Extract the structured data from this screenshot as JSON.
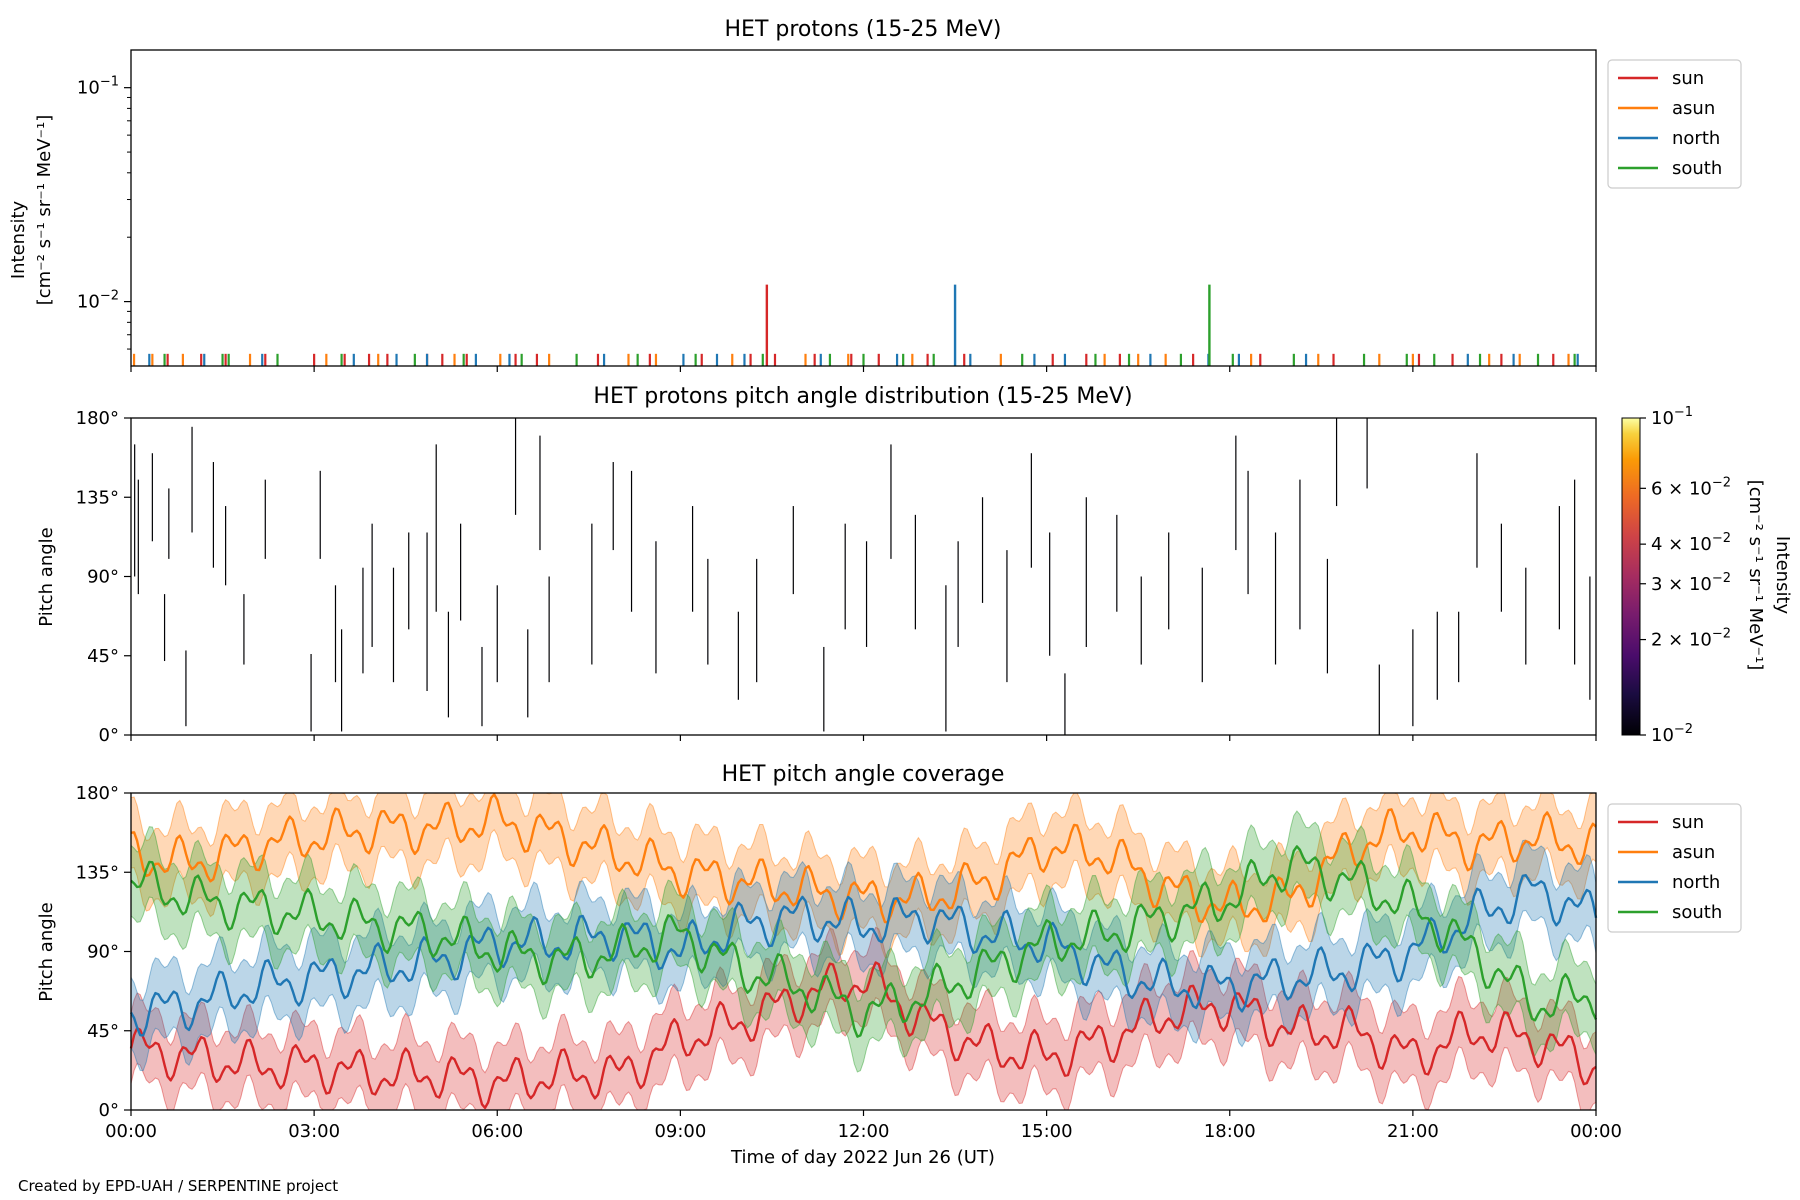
{
  "credit": "Created by EPD-UAH / SERPENTINE project",
  "colors": {
    "sun": "#d62728",
    "asun": "#ff7f0e",
    "north": "#1f77b4",
    "south": "#2ca02c"
  },
  "chart_data": [
    {
      "type": "line",
      "title": "HET protons (15-25 MeV)",
      "ylabel": "Intensity",
      "ylabel_unit": "[cm⁻² s⁻¹ sr⁻¹ MeV⁻¹]",
      "yscale": "log",
      "ylim": [
        0.005,
        0.15
      ],
      "y_ticks": [
        {
          "value": 0.01,
          "base": "10",
          "exp": "−2"
        },
        {
          "value": 0.1,
          "base": "10",
          "exp": "−1"
        }
      ],
      "x_range_hours": [
        0,
        24
      ],
      "legend": {
        "placement": "outside-right",
        "entries": [
          "sun",
          "asun",
          "north",
          "south"
        ]
      },
      "series": [
        {
          "name": "sun",
          "color": "#d62728",
          "note": "sparse spikes",
          "peaks": [
            {
              "time": "10:25",
              "value": 0.012
            }
          ],
          "baseline_spikes_hours": [
            0.6,
            1.15,
            1.55,
            2.2,
            3.0,
            3.5,
            3.9,
            4.2,
            4.85,
            5.1,
            5.5,
            6.3,
            6.65,
            7.65,
            8.5,
            9.35,
            10.15,
            10.55,
            11.2,
            11.8,
            12.25,
            13.05,
            13.65,
            15.1,
            15.65,
            16.2,
            17.4,
            18.5,
            19.7,
            21.1,
            21.65,
            22.45,
            23.3
          ]
        },
        {
          "name": "asun",
          "color": "#ff7f0e",
          "note": "sparse spikes",
          "peaks": [],
          "baseline_spikes_hours": [
            0.05,
            0.35,
            0.85,
            1.95,
            3.2,
            4.05,
            5.3,
            6.05,
            6.85,
            8.15,
            8.6,
            9.85,
            11.05,
            11.75,
            12.8,
            14.25,
            15.95,
            16.5,
            16.95,
            18.35,
            19.45,
            20.45,
            21.0,
            22.25,
            22.75,
            23.55
          ]
        },
        {
          "name": "north",
          "color": "#1f77b4",
          "note": "sparse spikes",
          "peaks": [
            {
              "time": "13:30",
              "value": 0.012
            }
          ],
          "baseline_spikes_hours": [
            0.3,
            1.2,
            2.15,
            3.65,
            4.35,
            4.85,
            5.65,
            6.2,
            7.75,
            9.05,
            9.6,
            10.05,
            11.3,
            12.55,
            13.75,
            14.8,
            15.3,
            16.7,
            17.65,
            18.15,
            19.25,
            21.9,
            22.65,
            23.7
          ]
        },
        {
          "name": "south",
          "color": "#2ca02c",
          "note": "sparse spikes",
          "peaks": [
            {
              "time": "17:40",
              "value": 0.012
            }
          ],
          "baseline_spikes_hours": [
            0.55,
            1.5,
            1.6,
            2.4,
            3.45,
            4.65,
            5.45,
            6.4,
            7.3,
            8.3,
            9.25,
            10.35,
            11.45,
            12.0,
            12.65,
            13.15,
            14.6,
            15.8,
            16.35,
            17.2,
            18.05,
            19.05,
            20.2,
            20.9,
            21.35,
            22.1,
            23.05,
            23.65
          ]
        }
      ]
    },
    {
      "type": "heatmap",
      "title": "HET protons pitch angle distribution (15-25 MeV)",
      "ylabel": "Pitch angle",
      "ylim": [
        0,
        180
      ],
      "y_ticks": [
        "0°",
        "45°",
        "90°",
        "135°",
        "180°"
      ],
      "x_range_hours": [
        0,
        24
      ],
      "note": "sparse thin dark vertical strokes, values near colorbar minimum",
      "strokes": [
        {
          "h": 0.06,
          "from": 90,
          "to": 165
        },
        {
          "h": 0.12,
          "from": 80,
          "to": 145
        },
        {
          "h": 0.35,
          "from": 110,
          "to": 160
        },
        {
          "h": 0.55,
          "from": 42,
          "to": 80
        },
        {
          "h": 0.62,
          "from": 100,
          "to": 140
        },
        {
          "h": 0.9,
          "from": 5,
          "to": 48
        },
        {
          "h": 1.0,
          "from": 115,
          "to": 175
        },
        {
          "h": 1.35,
          "from": 95,
          "to": 155
        },
        {
          "h": 1.55,
          "from": 85,
          "to": 130
        },
        {
          "h": 1.85,
          "from": 40,
          "to": 80
        },
        {
          "h": 2.2,
          "from": 100,
          "to": 145
        },
        {
          "h": 2.95,
          "from": 2,
          "to": 46
        },
        {
          "h": 3.1,
          "from": 100,
          "to": 150
        },
        {
          "h": 3.35,
          "from": 30,
          "to": 85
        },
        {
          "h": 3.45,
          "from": 2,
          "to": 60
        },
        {
          "h": 3.8,
          "from": 35,
          "to": 95
        },
        {
          "h": 3.95,
          "from": 50,
          "to": 120
        },
        {
          "h": 4.3,
          "from": 30,
          "to": 95
        },
        {
          "h": 4.55,
          "from": 60,
          "to": 115
        },
        {
          "h": 4.85,
          "from": 25,
          "to": 115
        },
        {
          "h": 5.0,
          "from": 70,
          "to": 165
        },
        {
          "h": 5.2,
          "from": 10,
          "to": 70
        },
        {
          "h": 5.4,
          "from": 65,
          "to": 120
        },
        {
          "h": 5.75,
          "from": 5,
          "to": 50
        },
        {
          "h": 6.0,
          "from": 30,
          "to": 85
        },
        {
          "h": 6.3,
          "from": 125,
          "to": 180
        },
        {
          "h": 6.5,
          "from": 10,
          "to": 60
        },
        {
          "h": 6.7,
          "from": 105,
          "to": 170
        },
        {
          "h": 6.85,
          "from": 30,
          "to": 90
        },
        {
          "h": 7.55,
          "from": 40,
          "to": 120
        },
        {
          "h": 7.9,
          "from": 105,
          "to": 155
        },
        {
          "h": 8.2,
          "from": 70,
          "to": 150
        },
        {
          "h": 8.6,
          "from": 35,
          "to": 110
        },
        {
          "h": 9.2,
          "from": 70,
          "to": 130
        },
        {
          "h": 9.45,
          "from": 40,
          "to": 100
        },
        {
          "h": 9.95,
          "from": 20,
          "to": 70
        },
        {
          "h": 10.25,
          "from": 30,
          "to": 100
        },
        {
          "h": 10.85,
          "from": 80,
          "to": 130
        },
        {
          "h": 11.35,
          "from": 2,
          "to": 50
        },
        {
          "h": 11.7,
          "from": 60,
          "to": 120
        },
        {
          "h": 12.05,
          "from": 50,
          "to": 110
        },
        {
          "h": 12.45,
          "from": 100,
          "to": 165
        },
        {
          "h": 12.85,
          "from": 60,
          "to": 125
        },
        {
          "h": 13.35,
          "from": 2,
          "to": 85
        },
        {
          "h": 13.55,
          "from": 50,
          "to": 110
        },
        {
          "h": 13.95,
          "from": 75,
          "to": 135
        },
        {
          "h": 14.35,
          "from": 30,
          "to": 105
        },
        {
          "h": 14.75,
          "from": 95,
          "to": 160
        },
        {
          "h": 15.05,
          "from": 45,
          "to": 115
        },
        {
          "h": 15.3,
          "from": 0,
          "to": 35
        },
        {
          "h": 15.65,
          "from": 50,
          "to": 135
        },
        {
          "h": 16.15,
          "from": 70,
          "to": 125
        },
        {
          "h": 16.55,
          "from": 40,
          "to": 90
        },
        {
          "h": 17.0,
          "from": 60,
          "to": 115
        },
        {
          "h": 17.55,
          "from": 30,
          "to": 95
        },
        {
          "h": 18.1,
          "from": 105,
          "to": 170
        },
        {
          "h": 18.3,
          "from": 80,
          "to": 150
        },
        {
          "h": 18.75,
          "from": 40,
          "to": 115
        },
        {
          "h": 19.15,
          "from": 60,
          "to": 145
        },
        {
          "h": 19.6,
          "from": 35,
          "to": 100
        },
        {
          "h": 19.75,
          "from": 130,
          "to": 180
        },
        {
          "h": 20.25,
          "from": 140,
          "to": 180
        },
        {
          "h": 20.45,
          "from": 0,
          "to": 40
        },
        {
          "h": 21.0,
          "from": 5,
          "to": 60
        },
        {
          "h": 21.4,
          "from": 20,
          "to": 70
        },
        {
          "h": 21.75,
          "from": 30,
          "to": 70
        },
        {
          "h": 22.05,
          "from": 95,
          "to": 160
        },
        {
          "h": 22.45,
          "from": 70,
          "to": 120
        },
        {
          "h": 22.85,
          "from": 40,
          "to": 95
        },
        {
          "h": 23.4,
          "from": 60,
          "to": 130
        },
        {
          "h": 23.65,
          "from": 40,
          "to": 145
        },
        {
          "h": 23.9,
          "from": 20,
          "to": 90
        }
      ],
      "colorbar": {
        "label": "Intensity",
        "label_unit": "[cm⁻² s⁻¹ sr⁻¹ MeV⁻¹]",
        "range": [
          0.01,
          0.1
        ],
        "ticks": [
          {
            "value": 0.01,
            "mant": "",
            "base": "10",
            "exp": "−2"
          },
          {
            "value": 0.02,
            "mant": "2 × ",
            "base": "10",
            "exp": "−2"
          },
          {
            "value": 0.03,
            "mant": "3 × ",
            "base": "10",
            "exp": "−2"
          },
          {
            "value": 0.04,
            "mant": "4 × ",
            "base": "10",
            "exp": "−2"
          },
          {
            "value": 0.06,
            "mant": "6 × ",
            "base": "10",
            "exp": "−2"
          },
          {
            "value": 0.1,
            "mant": "",
            "base": "10",
            "exp": "−1"
          }
        ]
      }
    },
    {
      "type": "line",
      "title": "HET pitch angle coverage",
      "ylabel": "Pitch angle",
      "xlabel": "Time of day 2022 Jun 26 (UT)",
      "ylim": [
        0,
        180
      ],
      "y_ticks": [
        "0°",
        "45°",
        "90°",
        "135°",
        "180°"
      ],
      "x_ticks": [
        "00:00",
        "03:00",
        "06:00",
        "09:00",
        "12:00",
        "15:00",
        "18:00",
        "21:00",
        "00:00"
      ],
      "x_range_hours": [
        0,
        24
      ],
      "shaded_band_halfwidth_deg": 20,
      "legend": {
        "placement": "outside-right",
        "entries": [
          "sun",
          "asun",
          "north",
          "south"
        ]
      },
      "x": [
        0,
        1,
        2,
        3,
        4,
        5,
        6,
        7,
        8,
        9,
        10,
        11,
        12,
        13,
        14,
        15,
        16,
        17,
        18,
        19,
        20,
        21,
        22,
        23,
        24
      ],
      "series": [
        {
          "name": "sun",
          "color": "#d62728",
          "values": [
            35,
            30,
            25,
            25,
            20,
            20,
            15,
            20,
            20,
            40,
            50,
            65,
            75,
            50,
            35,
            30,
            40,
            55,
            60,
            45,
            45,
            30,
            45,
            40,
            25
          ]
        },
        {
          "name": "asun",
          "color": "#ff7f0e",
          "values": [
            145,
            140,
            150,
            155,
            160,
            160,
            165,
            155,
            145,
            135,
            130,
            125,
            120,
            120,
            130,
            150,
            145,
            125,
            115,
            120,
            150,
            160,
            150,
            155,
            150
          ]
        },
        {
          "name": "north",
          "color": "#1f77b4",
          "values": [
            55,
            60,
            70,
            75,
            80,
            85,
            95,
            95,
            100,
            90,
            105,
            110,
            105,
            110,
            100,
            95,
            80,
            70,
            70,
            75,
            80,
            90,
            110,
            125,
            110
          ]
        },
        {
          "name": "south",
          "color": "#2ca02c",
          "values": [
            130,
            120,
            115,
            110,
            105,
            100,
            90,
            85,
            90,
            100,
            80,
            70,
            55,
            65,
            80,
            95,
            100,
            110,
            120,
            140,
            130,
            115,
            90,
            60,
            65
          ]
        }
      ]
    }
  ]
}
